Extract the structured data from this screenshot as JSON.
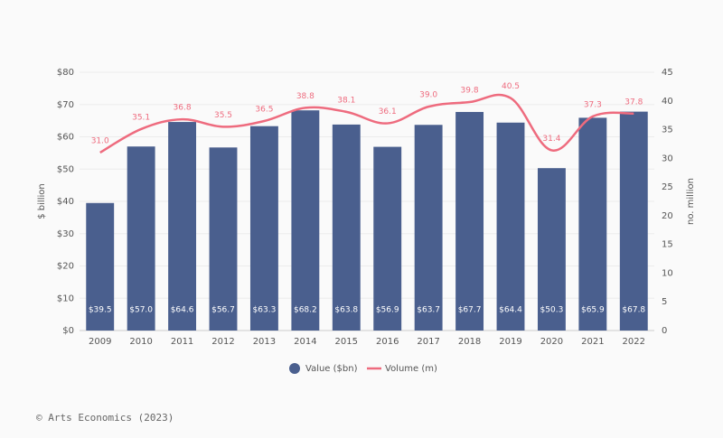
{
  "chart_data": {
    "type": "bar",
    "categories": [
      "2009",
      "2010",
      "2011",
      "2012",
      "2013",
      "2014",
      "2015",
      "2016",
      "2017",
      "2018",
      "2019",
      "2020",
      "2021",
      "2022"
    ],
    "series": [
      {
        "name": "Value ($bn)",
        "color": "#4a5f8e",
        "values": [
          39.5,
          57.0,
          64.6,
          56.7,
          63.3,
          68.2,
          63.8,
          56.9,
          63.7,
          67.7,
          64.4,
          50.3,
          65.9,
          67.8
        ],
        "value_labels": [
          "$39.5",
          "$57.0",
          "$64.6",
          "$56.7",
          "$63.3",
          "$68.2",
          "$63.8",
          "$56.9",
          "$63.7",
          "$67.7",
          "$64.4",
          "$50.3",
          "$65.9",
          "$67.8"
        ]
      },
      {
        "name": "Volume (m)",
        "type": "line",
        "axis": "y2",
        "color": "#ee6b7e",
        "values": [
          31.0,
          35.1,
          36.8,
          35.5,
          36.5,
          38.8,
          38.1,
          36.1,
          39.0,
          39.8,
          40.5,
          31.4,
          37.3,
          37.8
        ],
        "value_labels": [
          "31.0",
          "35.1",
          "36.8",
          "35.5",
          "36.5",
          "38.8",
          "38.1",
          "36.1",
          "39.0",
          "39.8",
          "40.5",
          "31.4",
          "37.3",
          "37.8"
        ]
      }
    ],
    "ylabel": "$ billion",
    "y2label": "no. million",
    "ylim": [
      0,
      80
    ],
    "yticks": [
      {
        "value": 0,
        "label": "$0"
      },
      {
        "value": 10,
        "label": "$10"
      },
      {
        "value": 20,
        "label": "$20"
      },
      {
        "value": 30,
        "label": "$30"
      },
      {
        "value": 40,
        "label": "$40"
      },
      {
        "value": 50,
        "label": "$50"
      },
      {
        "value": 60,
        "label": "$60"
      },
      {
        "value": 70,
        "label": "$70"
      },
      {
        "value": 80,
        "label": "$80"
      }
    ],
    "y2lim": [
      0,
      45
    ],
    "y2ticks": [
      0,
      5,
      10,
      15,
      20,
      25,
      30,
      35,
      40,
      45
    ],
    "grid": true,
    "legend": "bottom",
    "source": "© Arts Economics (2023)"
  }
}
